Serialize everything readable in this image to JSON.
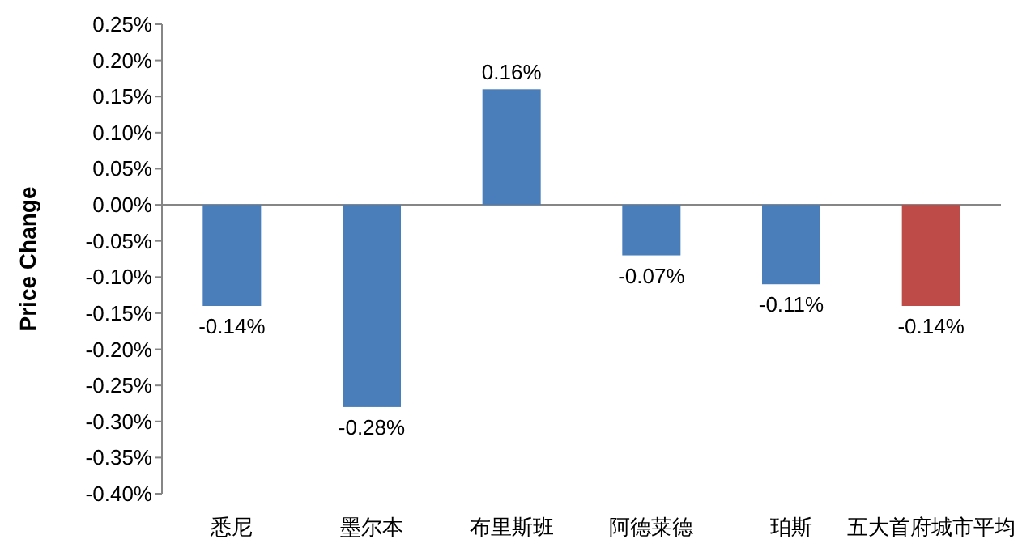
{
  "chart_data": {
    "type": "bar",
    "ylabel": "Price Change",
    "categories": [
      "悉尼",
      "墨尔本",
      "布里斯班",
      "阿德莱德",
      "珀斯",
      "五大首府城市平均"
    ],
    "values": [
      -0.14,
      -0.28,
      0.16,
      -0.07,
      -0.11,
      -0.14
    ],
    "colors": [
      "#4a7ebb",
      "#4a7ebb",
      "#4a7ebb",
      "#4a7ebb",
      "#4a7ebb",
      "#be4b48"
    ],
    "value_labels": [
      "-0.14%",
      "-0.28%",
      "0.16%",
      "-0.07%",
      "-0.11%",
      "-0.14%"
    ],
    "ylim": [
      -0.4,
      0.25
    ],
    "yticks": [
      {
        "value": 0.25,
        "label": "0.25%"
      },
      {
        "value": 0.2,
        "label": "0.20%"
      },
      {
        "value": 0.15,
        "label": "0.15%"
      },
      {
        "value": 0.1,
        "label": "0.10%"
      },
      {
        "value": 0.05,
        "label": "0.05%"
      },
      {
        "value": 0,
        "label": "0.00%"
      },
      {
        "value": -0.05,
        "label": "-0.05%"
      },
      {
        "value": -0.1,
        "label": "-0.10%"
      },
      {
        "value": -0.15,
        "label": "-0.15%"
      },
      {
        "value": -0.2,
        "label": "-0.20%"
      },
      {
        "value": -0.25,
        "label": "-0.25%"
      },
      {
        "value": -0.3,
        "label": "-0.30%"
      },
      {
        "value": -0.35,
        "label": "-0.35%"
      },
      {
        "value": -0.4,
        "label": "-0.40%"
      }
    ],
    "data_labels": false
  }
}
